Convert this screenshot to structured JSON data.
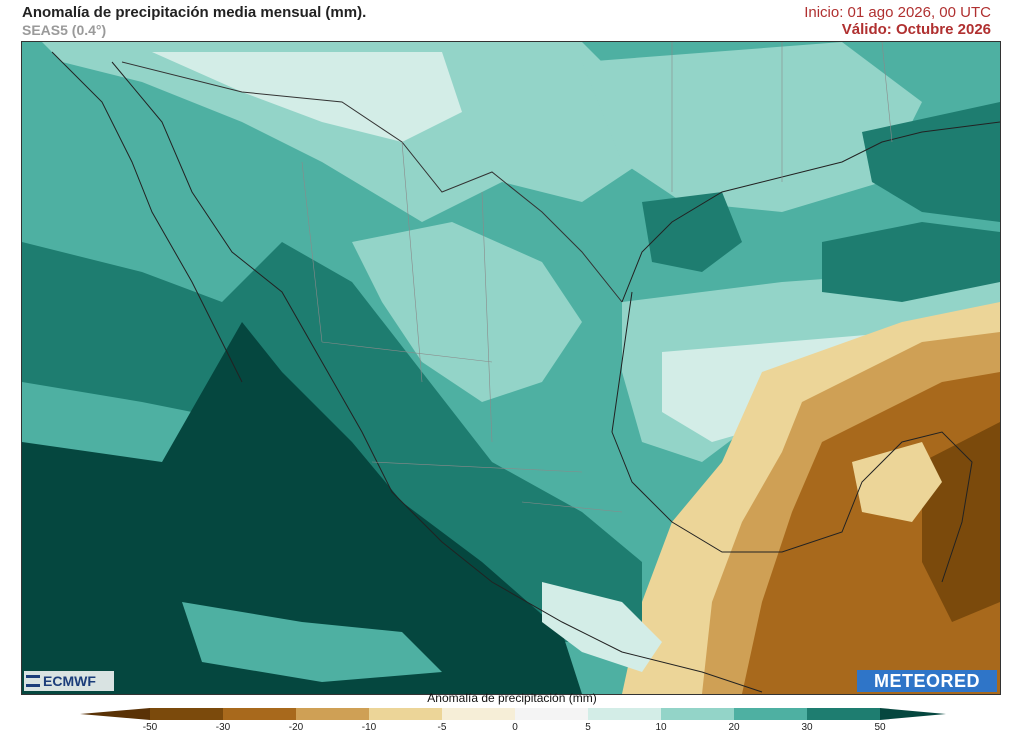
{
  "header": {
    "title": "Anomalía de precipitación media mensual (mm).",
    "model": "SEAS5 (0.4°)",
    "init": "Inicio: 01 ago 2026, 00 UTC",
    "valid": "Válido: Octubre 2026"
  },
  "logos": {
    "left": "ECMWF",
    "right": "METEORED"
  },
  "legend": {
    "title": "Anomalía de precipitación (mm)",
    "ticks": [
      "-50",
      "-30",
      "-20",
      "-10",
      "-5",
      "0",
      "5",
      "10",
      "20",
      "30",
      "50"
    ],
    "colors": {
      "neg_extreme": "#5a3206",
      "n50": "#7b4a0c",
      "n30": "#a8691c",
      "n20": "#cfa055",
      "n10": "#ecd598",
      "n5": "#f6eed7",
      "zero": "#f4f4f4",
      "p5": "#d3ede7",
      "p10": "#93d4c8",
      "p20": "#4eb0a2",
      "p30": "#1e7d70",
      "pos_extreme": "#05473f"
    }
  },
  "colors": {
    "title_text": "#222222",
    "model_text": "#9a9a9a",
    "date_text": "#b03030",
    "meteored_bg": "#2f75c8",
    "ecmwf_text": "#1b3d7a"
  }
}
